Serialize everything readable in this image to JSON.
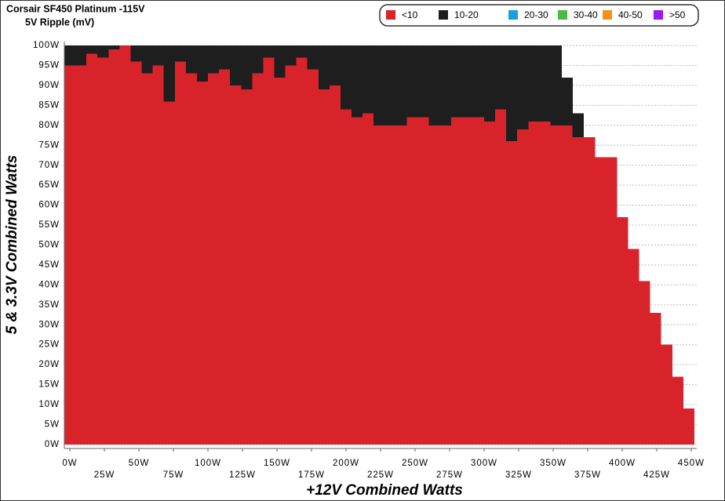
{
  "chart_data": {
    "type": "stacked-columns",
    "title": "Corsair SF450 Platinum -115V",
    "subtitle": "5V Ripple (mV)",
    "x_label": "+12V Combined Watts",
    "y_label": "5 & 3.3V Combined Watts",
    "x": [
      0,
      8,
      16,
      24,
      32,
      40,
      48,
      56,
      64,
      72,
      80,
      88,
      96,
      104,
      112,
      120,
      128,
      136,
      144,
      152,
      160,
      168,
      176,
      184,
      192,
      200,
      208,
      216,
      224,
      232,
      240,
      248,
      256,
      264,
      272,
      280,
      288,
      296,
      304,
      312,
      320,
      328,
      336,
      344,
      352,
      360,
      368,
      376,
      384,
      392,
      400,
      408,
      416,
      424,
      432,
      440,
      448
    ],
    "column_width": 8,
    "series": [
      {
        "name": "<10",
        "color": "#d9232a",
        "values": [
          95,
          95,
          98,
          97,
          99,
          100,
          96,
          93,
          95,
          86,
          96,
          93,
          91,
          93,
          94,
          90,
          89,
          93,
          97,
          92,
          95,
          97,
          94,
          89,
          90,
          84,
          82,
          83,
          80,
          80,
          80,
          82,
          82,
          80,
          80,
          82,
          82,
          82,
          81,
          84,
          76,
          79,
          81,
          81,
          80,
          80,
          77,
          77,
          72,
          72,
          57,
          49,
          41,
          33,
          25,
          17,
          9
        ]
      },
      {
        "name": "10-20",
        "color": "#1e1e1e",
        "values": [
          5,
          5,
          2,
          3,
          1,
          0,
          4,
          7,
          5,
          14,
          4,
          7,
          9,
          7,
          6,
          10,
          11,
          7,
          3,
          8,
          5,
          3,
          6,
          11,
          10,
          16,
          18,
          17,
          20,
          20,
          20,
          18,
          18,
          20,
          20,
          18,
          18,
          18,
          19,
          16,
          24,
          21,
          19,
          19,
          20,
          12,
          6,
          0,
          0,
          0,
          0,
          0,
          0,
          0,
          0,
          0,
          0
        ]
      },
      {
        "name": "20-30",
        "color": "#1aa0d8",
        "values": [
          0,
          0,
          0,
          0,
          0,
          0,
          0,
          0,
          0,
          0,
          0,
          0,
          0,
          0,
          0,
          0,
          0,
          0,
          0,
          0,
          0,
          0,
          0,
          0,
          0,
          0,
          0,
          0,
          0,
          0,
          0,
          0,
          0,
          0,
          0,
          0,
          0,
          0,
          0,
          0,
          0,
          0,
          0,
          0,
          0,
          0,
          0,
          0,
          0,
          0,
          0,
          0,
          0,
          0,
          0,
          0,
          0
        ]
      },
      {
        "name": "30-40",
        "color": "#4cb849",
        "values": [
          0,
          0,
          0,
          0,
          0,
          0,
          0,
          0,
          0,
          0,
          0,
          0,
          0,
          0,
          0,
          0,
          0,
          0,
          0,
          0,
          0,
          0,
          0,
          0,
          0,
          0,
          0,
          0,
          0,
          0,
          0,
          0,
          0,
          0,
          0,
          0,
          0,
          0,
          0,
          0,
          0,
          0,
          0,
          0,
          0,
          0,
          0,
          0,
          0,
          0,
          0,
          0,
          0,
          0,
          0,
          0,
          0
        ]
      },
      {
        "name": "40-50",
        "color": "#f2921c",
        "values": [
          0,
          0,
          0,
          0,
          0,
          0,
          0,
          0,
          0,
          0,
          0,
          0,
          0,
          0,
          0,
          0,
          0,
          0,
          0,
          0,
          0,
          0,
          0,
          0,
          0,
          0,
          0,
          0,
          0,
          0,
          0,
          0,
          0,
          0,
          0,
          0,
          0,
          0,
          0,
          0,
          0,
          0,
          0,
          0,
          0,
          0,
          0,
          0,
          0,
          0,
          0,
          0,
          0,
          0,
          0,
          0,
          0
        ]
      },
      {
        "name": ">50",
        "color": "#9b1aef",
        "values": [
          0,
          0,
          0,
          0,
          0,
          0,
          0,
          0,
          0,
          0,
          0,
          0,
          0,
          0,
          0,
          0,
          0,
          0,
          0,
          0,
          0,
          0,
          0,
          0,
          0,
          0,
          0,
          0,
          0,
          0,
          0,
          0,
          0,
          0,
          0,
          0,
          0,
          0,
          0,
          0,
          0,
          0,
          0,
          0,
          0,
          0,
          0,
          0,
          0,
          0,
          0,
          0,
          0,
          0,
          0,
          0,
          0
        ]
      }
    ],
    "xlim": [
      -4,
      454
    ],
    "ylim": [
      -1,
      101
    ],
    "xticks": [
      {
        "value": 0,
        "label": "0W"
      },
      {
        "value": 25,
        "label": "25W"
      },
      {
        "value": 50,
        "label": "50W"
      },
      {
        "value": 75,
        "label": "75W"
      },
      {
        "value": 100,
        "label": "100W"
      },
      {
        "value": 125,
        "label": "125W"
      },
      {
        "value": 150,
        "label": "150W"
      },
      {
        "value": 175,
        "label": "175W"
      },
      {
        "value": 200,
        "label": "200W"
      },
      {
        "value": 225,
        "label": "225W"
      },
      {
        "value": 250,
        "label": "250W"
      },
      {
        "value": 275,
        "label": "275W"
      },
      {
        "value": 300,
        "label": "300W"
      },
      {
        "value": 325,
        "label": "325W"
      },
      {
        "value": 350,
        "label": "350W"
      },
      {
        "value": 375,
        "label": "375W"
      },
      {
        "value": 400,
        "label": "400W"
      },
      {
        "value": 425,
        "label": "425W"
      },
      {
        "value": 450,
        "label": "450W"
      }
    ],
    "yticks": [
      {
        "value": 0,
        "label": "0W"
      },
      {
        "value": 5,
        "label": "5W"
      },
      {
        "value": 10,
        "label": "10W"
      },
      {
        "value": 15,
        "label": "15W"
      },
      {
        "value": 20,
        "label": "20W"
      },
      {
        "value": 25,
        "label": "25W"
      },
      {
        "value": 30,
        "label": "30W"
      },
      {
        "value": 35,
        "label": "35W"
      },
      {
        "value": 40,
        "label": "40W"
      },
      {
        "value": 45,
        "label": "45W"
      },
      {
        "value": 50,
        "label": "50W"
      },
      {
        "value": 55,
        "label": "55W"
      },
      {
        "value": 60,
        "label": "60W"
      },
      {
        "value": 65,
        "label": "65W"
      },
      {
        "value": 70,
        "label": "70W"
      },
      {
        "value": 75,
        "label": "75W"
      },
      {
        "value": 80,
        "label": "80W"
      },
      {
        "value": 85,
        "label": "85W"
      },
      {
        "value": 90,
        "label": "90W"
      },
      {
        "value": 95,
        "label": "95W"
      },
      {
        "value": 100,
        "label": "100W"
      }
    ],
    "grid": true,
    "legend": "top-right"
  }
}
